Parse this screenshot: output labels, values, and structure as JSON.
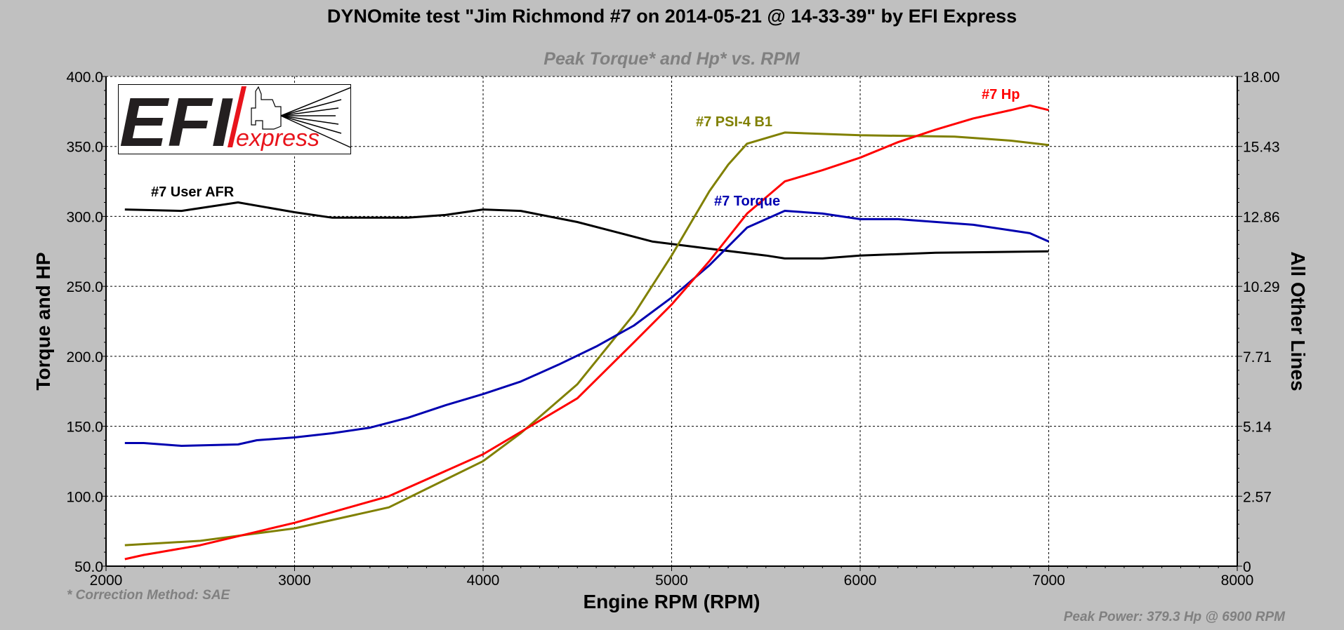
{
  "title": "DYNOmite test \"Jim Richmond #7 on 2014-05-21 @ 14-33-39\" by EFI Express",
  "footnote": "* Correction Method: SAE",
  "peak_power": "Peak Power: 379.3 Hp @ 6900 RPM",
  "logo": {
    "text": "EFI express"
  },
  "colors": {
    "background": "#c0c0c0",
    "plot": "#ffffff",
    "hp": "#ff0000",
    "torque": "#0000b0",
    "psi": "#808000",
    "afr": "#000000",
    "note": "#808080"
  },
  "chart_data": {
    "type": "line",
    "title": "Peak Torque* and Hp* vs. RPM",
    "xlabel": "Engine RPM (RPM)",
    "ylabel": "Torque and HP",
    "ylabel_right": "All Other Lines",
    "xlim": [
      2000,
      8000
    ],
    "ylim": [
      50,
      400
    ],
    "ylim_right": [
      0,
      18
    ],
    "grid": true,
    "xticks": [
      "2000",
      "3000",
      "4000",
      "5000",
      "6000",
      "7000",
      "8000"
    ],
    "yticks": [
      "50.0",
      "100.0",
      "150.0",
      "200.0",
      "250.0",
      "300.0",
      "350.0",
      "400.0"
    ],
    "yticks_right": [
      "0",
      "2.57",
      "5.14",
      "7.71",
      "10.29",
      "12.86",
      "15.43",
      "18.00"
    ],
    "series": [
      {
        "name": "#7 Hp",
        "axis": "left",
        "color": "#ff0000",
        "x": [
          2100,
          2200,
          2500,
          3000,
          3500,
          4000,
          4500,
          4800,
          5000,
          5200,
          5400,
          5600,
          5800,
          6000,
          6200,
          6400,
          6600,
          6800,
          6900,
          7000
        ],
        "y": [
          55,
          58,
          65,
          81,
          100,
          130,
          170,
          210,
          237,
          268,
          302,
          325,
          333,
          342,
          353,
          362,
          370,
          376,
          379.3,
          376
        ]
      },
      {
        "name": "#7 Torque",
        "axis": "left",
        "color": "#0000b0",
        "x": [
          2100,
          2200,
          2400,
          2700,
          2800,
          3000,
          3200,
          3400,
          3600,
          3800,
          4000,
          4200,
          4400,
          4600,
          4800,
          5000,
          5200,
          5400,
          5600,
          5800,
          6000,
          6200,
          6400,
          6600,
          6800,
          6900,
          7000
        ],
        "y": [
          138,
          138,
          136,
          137,
          140,
          142,
          145,
          149,
          156,
          165,
          173,
          182,
          194,
          207,
          222,
          242,
          265,
          292,
          304,
          302,
          298,
          298,
          296,
          294,
          290,
          288,
          282
        ]
      },
      {
        "name": "#7 PSI-4 B1",
        "axis": "right",
        "color": "#808000",
        "x": [
          2100,
          2500,
          3000,
          3500,
          4000,
          4200,
          4500,
          4800,
          5000,
          5200,
          5300,
          5400,
          5600,
          6000,
          6500,
          6600,
          6800,
          7000
        ],
        "y": [
          0.77,
          0.93,
          1.39,
          2.16,
          3.86,
          4.89,
          6.69,
          9.26,
          11.42,
          13.78,
          14.76,
          15.53,
          15.94,
          15.84,
          15.79,
          15.74,
          15.64,
          15.48
        ]
      },
      {
        "name": "#7 User AFR",
        "axis": "right",
        "color": "#000000",
        "x": [
          2100,
          2400,
          2700,
          3000,
          3200,
          3600,
          3800,
          4000,
          4200,
          4500,
          4700,
          4900,
          5200,
          5500,
          5600,
          5800,
          6000,
          6400,
          7000
        ],
        "y": [
          13.11,
          13.06,
          13.37,
          13.01,
          12.81,
          12.81,
          12.91,
          13.11,
          13.06,
          12.65,
          12.29,
          11.93,
          11.67,
          11.42,
          11.31,
          11.31,
          11.42,
          11.52,
          11.57
        ]
      }
    ]
  }
}
